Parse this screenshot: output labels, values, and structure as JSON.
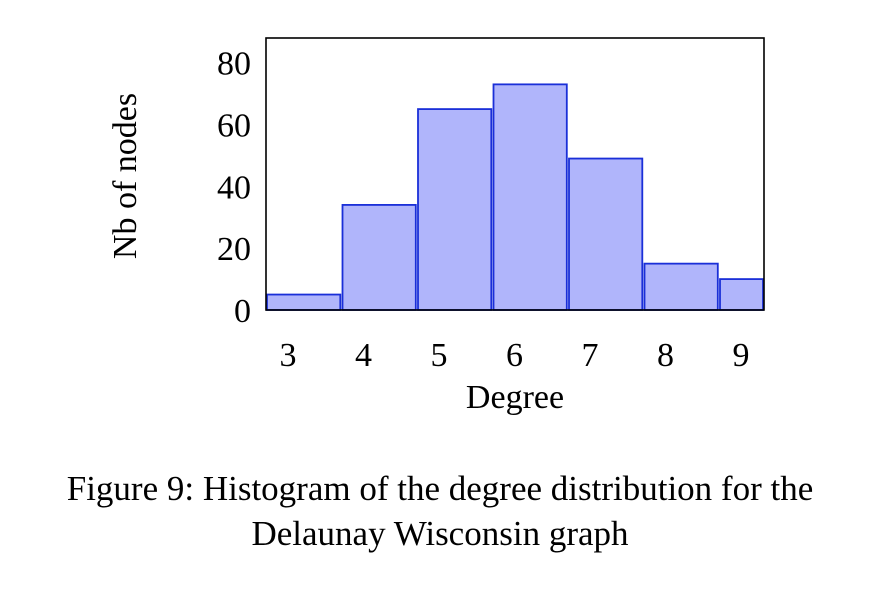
{
  "chart_data": {
    "type": "bar",
    "categories": [
      "3",
      "4",
      "5",
      "6",
      "7",
      "8",
      "9"
    ],
    "values": [
      5,
      34,
      65,
      73,
      49,
      15,
      10
    ],
    "xlabel": "Degree",
    "ylabel": "Nb of nodes",
    "ylim": [
      0,
      88
    ],
    "yticks": [
      0,
      20,
      40,
      60,
      80
    ],
    "grid": false,
    "bar_fill": "#b0b5fb",
    "bar_stroke": "#1a2fd8"
  },
  "caption": {
    "line1": "Figure 9: Histogram of the degree distribution for the",
    "line2": "Delaunay Wisconsin graph"
  }
}
